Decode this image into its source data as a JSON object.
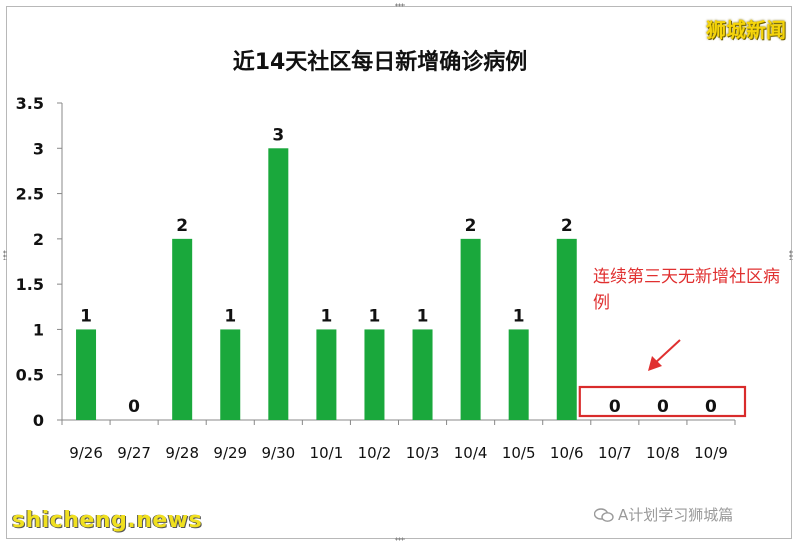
{
  "brand": "狮城新闻",
  "annotation": "连续第三天无新增社区病例",
  "footer": {
    "wechat_label": "A计划学习狮城篇",
    "watermark": "shicheng.news"
  },
  "colors": {
    "bar": "#1aa83c",
    "highlight_box": "#d92b2b",
    "annotation": "#e03030"
  },
  "chart_data": {
    "type": "bar",
    "title": "近14天社区每日新增确诊病例",
    "categories": [
      "9/26",
      "9/27",
      "9/28",
      "9/29",
      "9/30",
      "10/1",
      "10/2",
      "10/3",
      "10/4",
      "10/5",
      "10/6",
      "10/7",
      "10/8",
      "10/9"
    ],
    "values": [
      1,
      0,
      2,
      1,
      3,
      1,
      1,
      1,
      2,
      1,
      2,
      0,
      0,
      0
    ],
    "xlabel": "",
    "ylabel": "",
    "ylim": [
      0,
      3.5
    ],
    "yticks": [
      "0",
      "0.5",
      "1",
      "1.5",
      "2",
      "2.5",
      "3",
      "3.5"
    ],
    "grid": false,
    "legend": "none",
    "data_labels": true,
    "highlighted_categories": [
      "10/7",
      "10/8",
      "10/9"
    ]
  }
}
